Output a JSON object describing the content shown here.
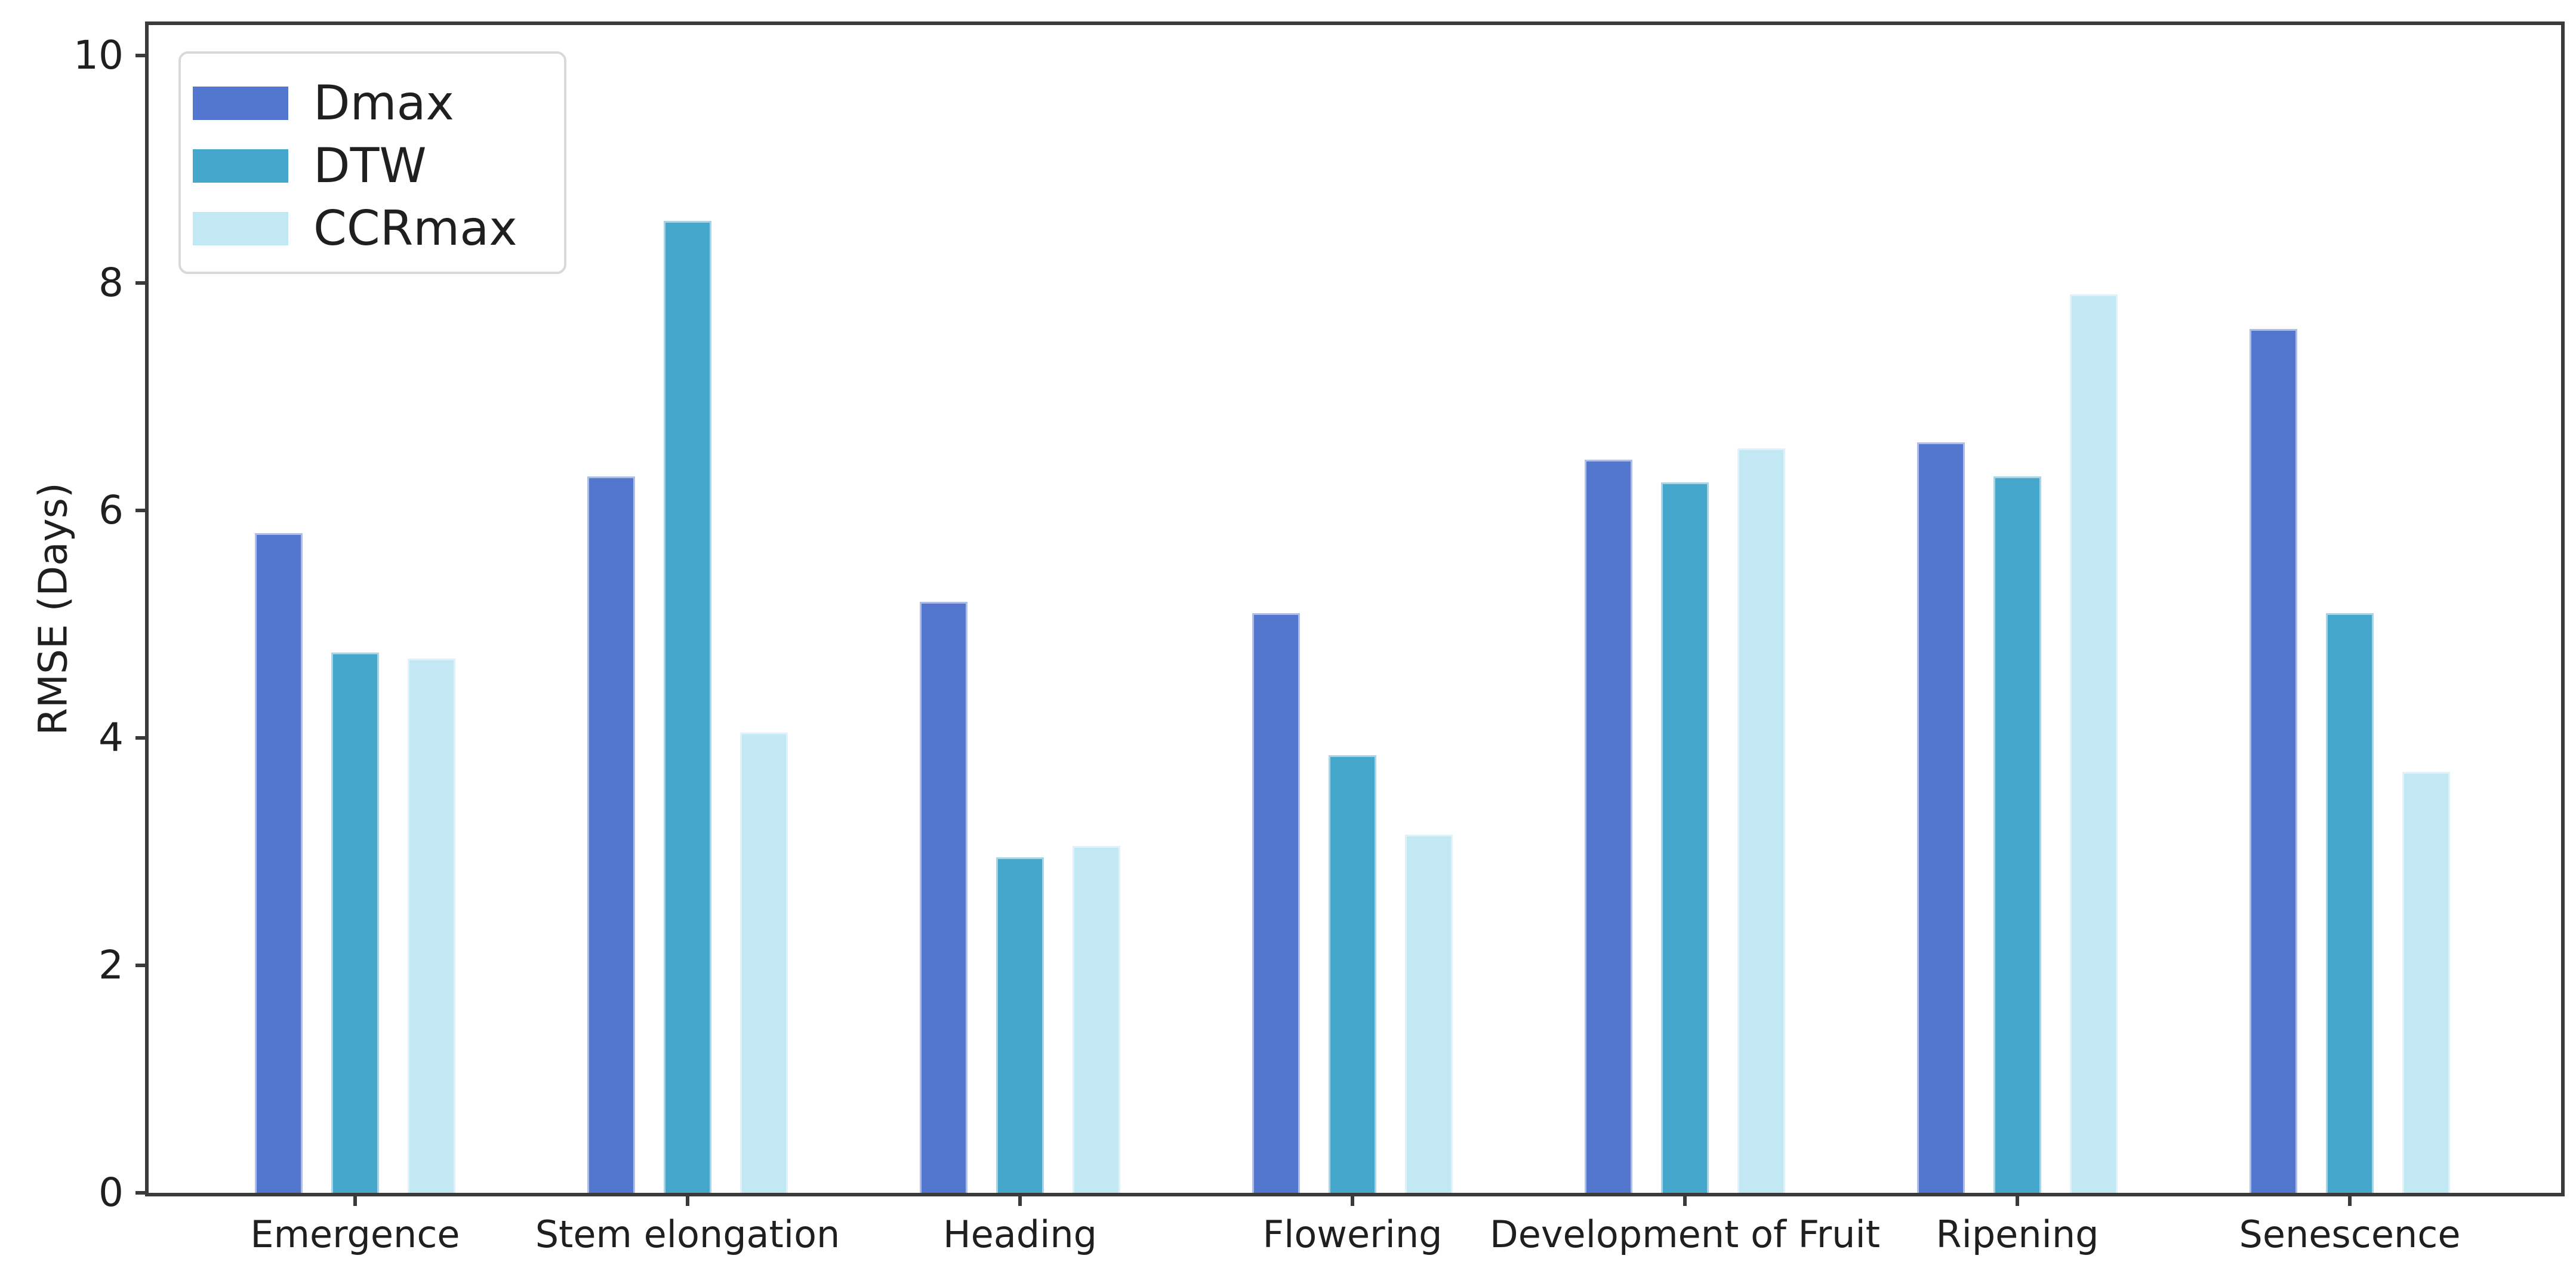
{
  "chart_data": {
    "type": "bar",
    "title": "",
    "xlabel": "",
    "ylabel": "RMSE (Days)",
    "categories": [
      "Emergence",
      "Stem elongation",
      "Heading",
      "Flowering",
      "Development of Fruit",
      "Ripening",
      "Senescence"
    ],
    "series": [
      {
        "name": "Dmax",
        "color": "#5377CE",
        "values": [
          5.8,
          6.3,
          5.2,
          5.1,
          6.45,
          6.6,
          7.6
        ]
      },
      {
        "name": "DTW",
        "color": "#45A7CB",
        "values": [
          4.75,
          8.55,
          2.95,
          3.85,
          6.25,
          6.3,
          5.1
        ]
      },
      {
        "name": "CCRmax",
        "color": "#C2E8F3",
        "values": [
          4.7,
          4.05,
          3.05,
          3.15,
          6.55,
          7.9,
          3.7
        ]
      }
    ],
    "yticks": [
      0,
      2,
      4,
      6,
      8,
      10
    ],
    "ylim": [
      0,
      10.27
    ],
    "grid": false,
    "legend_position": "upper left",
    "axis_color": "#3a3a3a",
    "background_color": "#ffffff"
  }
}
